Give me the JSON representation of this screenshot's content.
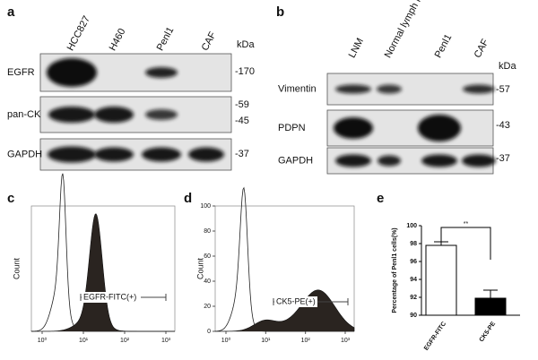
{
  "panels": {
    "a": {
      "label": "a",
      "unit": "kDa",
      "lanes": [
        "HCC827",
        "H460",
        "Penl1",
        "CAF"
      ],
      "rows": [
        {
          "name": "EGFR",
          "sizes": [
            "-170"
          ]
        },
        {
          "name": "pan-CK",
          "sizes": [
            "-59",
            "-45"
          ]
        },
        {
          "name": "GAPDH",
          "sizes": [
            "-37"
          ]
        }
      ]
    },
    "b": {
      "label": "b",
      "unit": "kDa",
      "lanes": [
        "LNM",
        "Normal lymph node",
        "Penl1",
        "CAF"
      ],
      "rows": [
        {
          "name": "Vimentin",
          "sizes": [
            "-57"
          ]
        },
        {
          "name": "PDPN",
          "sizes": [
            "-43"
          ]
        },
        {
          "name": "GAPDH",
          "sizes": [
            "-37"
          ]
        }
      ]
    },
    "c": {
      "label": "c",
      "ylabel": "Count",
      "xticks": [
        "10⁰",
        "10¹",
        "10²",
        "10³"
      ],
      "gate": "EGFR-FITC(+)"
    },
    "d": {
      "label": "d",
      "ylabel": "Count",
      "ylim": [
        0,
        100
      ],
      "yticks": [
        0,
        20,
        40,
        60,
        80,
        100
      ],
      "xticks": [
        "10⁰",
        "10¹",
        "10²",
        "10³"
      ],
      "gate": "CK5-PE(+)"
    },
    "e": {
      "label": "e",
      "chart_data": {
        "type": "bar",
        "ylabel": "Percentage of Penl1 cells(%)",
        "categories": [
          "EGFR-FITC",
          "CK5-PE"
        ],
        "values": [
          97.8,
          91.9
        ],
        "errors": [
          0.4,
          0.9
        ],
        "colors": [
          "#ffffff",
          "#000000"
        ],
        "ylim": [
          90,
          100
        ],
        "yticks": [
          90,
          92,
          94,
          96,
          98,
          100
        ],
        "annotation": "**"
      }
    }
  }
}
